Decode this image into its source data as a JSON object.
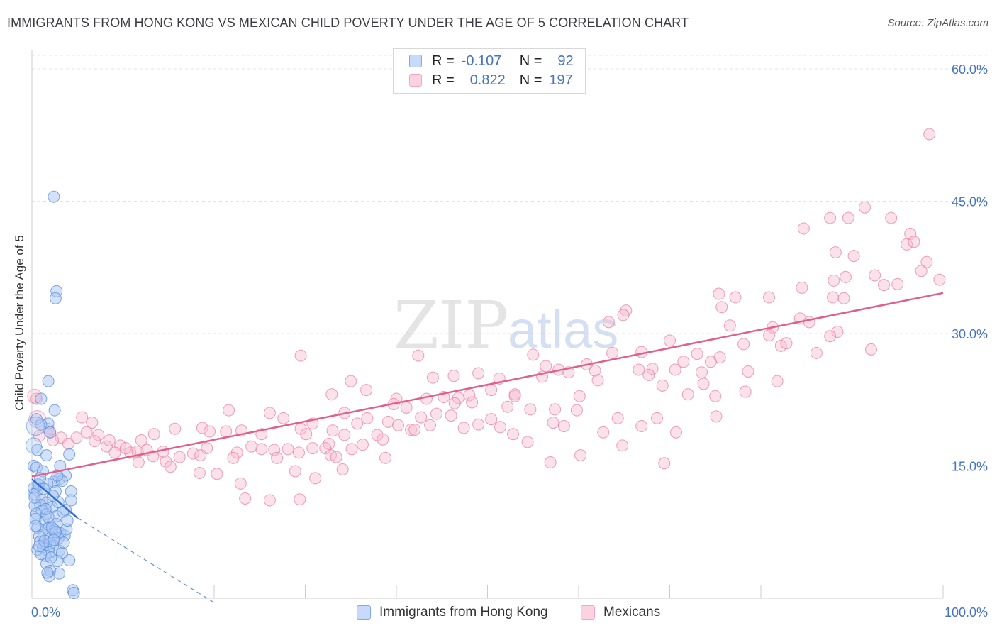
{
  "header": {
    "title": "IMMIGRANTS FROM HONG KONG VS MEXICAN CHILD POVERTY UNDER THE AGE OF 5 CORRELATION CHART",
    "source": "Source: ZipAtlas.com"
  },
  "watermark": {
    "zip": "ZIP",
    "atlas": "atlas"
  },
  "legend": {
    "rows": [
      {
        "r_label": "R =",
        "r_value": "-0.107",
        "n_label": "N =",
        "n_value": "92",
        "color": "#7baaf7"
      },
      {
        "r_label": "R =",
        "r_value": "0.822",
        "n_label": "N =",
        "n_value": "197",
        "color": "#f4a6c0"
      }
    ]
  },
  "colors": {
    "blue": "#5b8fdb",
    "blue_fill": "#a9c6f3",
    "pink": "#e8779b",
    "pink_fill": "#f7bccf",
    "axis_text": "#4472c4",
    "grid": "#e3e3e3"
  },
  "chart_data": {
    "type": "scatter",
    "title": "IMMIGRANTS FROM HONG KONG VS MEXICAN CHILD POVERTY UNDER THE AGE OF 5 CORRELATION CHART",
    "xlabel": "",
    "ylabel": "Child Poverty Under the Age of 5",
    "xlim": [
      0,
      100
    ],
    "ylim": [
      0,
      60
    ],
    "x_tick_labels": [
      "0.0%",
      "100.0%"
    ],
    "y_ticks": [
      15,
      30,
      45,
      60
    ],
    "y_tick_labels": [
      "15.0%",
      "30.0%",
      "45.0%",
      "60.0%"
    ],
    "grid": true,
    "legend_position": "bottom-center",
    "series": [
      {
        "name": "Immigrants from Hong Kong",
        "color": "#7baaf7",
        "trend": {
          "x0": 0,
          "y0": 13.5,
          "x1": 5.0,
          "y1": 9.1,
          "dash_to_x": 20,
          "dash_to_y": -0.5
        },
        "points": [
          [
            2.4,
            45.5
          ],
          [
            2.7,
            34.8
          ],
          [
            2.6,
            34.0
          ],
          [
            1.8,
            24.6
          ],
          [
            1.0,
            22.6
          ],
          [
            2.5,
            21.3
          ],
          [
            0.5,
            20.3
          ],
          [
            1.8,
            19.8
          ],
          [
            1.0,
            19.7
          ],
          [
            2.0,
            18.8
          ],
          [
            1.6,
            16.2
          ],
          [
            4.1,
            16.3
          ],
          [
            0.2,
            15.0
          ],
          [
            3.1,
            15.0
          ],
          [
            0.5,
            14.8
          ],
          [
            3.7,
            13.9
          ],
          [
            3.0,
            13.5
          ],
          [
            2.4,
            13.2
          ],
          [
            1.7,
            13.0
          ],
          [
            0.8,
            12.8
          ],
          [
            0.2,
            12.5
          ],
          [
            3.3,
            13.3
          ],
          [
            0.6,
            12.2
          ],
          [
            2.6,
            12.1
          ],
          [
            4.3,
            12.1
          ],
          [
            0.3,
            11.8
          ],
          [
            1.1,
            11.1
          ],
          [
            4.3,
            11.1
          ],
          [
            1.6,
            10.8
          ],
          [
            0.9,
            10.6
          ],
          [
            0.3,
            10.5
          ],
          [
            2.2,
            10.3
          ],
          [
            3.7,
            10.0
          ],
          [
            1.1,
            9.9
          ],
          [
            0.5,
            9.6
          ],
          [
            1.6,
            9.5
          ],
          [
            2.7,
            9.3
          ],
          [
            0.4,
            9.0
          ],
          [
            1.4,
            8.6
          ],
          [
            2.7,
            8.4
          ],
          [
            1.9,
            8.1
          ],
          [
            0.6,
            8.0
          ],
          [
            1.8,
            7.9
          ],
          [
            2.5,
            7.7
          ],
          [
            3.1,
            7.4
          ],
          [
            1.3,
            7.2
          ],
          [
            3.6,
            7.1
          ],
          [
            0.8,
            7.0
          ],
          [
            2.1,
            6.9
          ],
          [
            2.9,
            6.8
          ],
          [
            0.9,
            6.4
          ],
          [
            2.0,
            6.2
          ],
          [
            1.6,
            6.0
          ],
          [
            2.3,
            5.9
          ],
          [
            1.2,
            5.8
          ],
          [
            0.6,
            5.5
          ],
          [
            3.0,
            5.4
          ],
          [
            1.9,
            5.2
          ],
          [
            3.3,
            5.1
          ],
          [
            1.5,
            4.8
          ],
          [
            4.1,
            4.3
          ],
          [
            2.8,
            4.2
          ],
          [
            1.6,
            3.9
          ],
          [
            2.0,
            3.1
          ],
          [
            3.0,
            2.8
          ],
          [
            1.9,
            2.5
          ],
          [
            4.5,
            0.9
          ],
          [
            4.6,
            0.6
          ],
          [
            0.3,
            11.4
          ],
          [
            2.2,
            8.0
          ],
          [
            1.4,
            6.5
          ],
          [
            0.7,
            12.9
          ],
          [
            3.4,
            9.8
          ],
          [
            2.9,
            10.9
          ],
          [
            0.4,
            8.2
          ],
          [
            1.2,
            14.4
          ],
          [
            2.3,
            11.6
          ],
          [
            3.5,
            6.3
          ],
          [
            1.0,
            5.0
          ],
          [
            2.6,
            7.5
          ],
          [
            1.8,
            9.2
          ],
          [
            0.9,
            13.6
          ],
          [
            3.8,
            7.8
          ],
          [
            2.1,
            4.6
          ],
          [
            1.5,
            10.1
          ],
          [
            0.6,
            16.8
          ],
          [
            2.8,
            13.9
          ],
          [
            1.3,
            12.4
          ],
          [
            3.9,
            8.8
          ],
          [
            0.8,
            5.9
          ],
          [
            2.4,
            6.6
          ],
          [
            1.7,
            2.9
          ]
        ]
      },
      {
        "name": "Mexicans",
        "color": "#f4a6c0",
        "trend": {
          "x0": 0,
          "y0": 13.8,
          "x1": 100,
          "y1": 34.6
        },
        "points": [
          [
            98.5,
            52.6
          ],
          [
            91.4,
            44.3
          ],
          [
            89.6,
            43.1
          ],
          [
            87.6,
            43.1
          ],
          [
            94.3,
            43.1
          ],
          [
            84.7,
            41.9
          ],
          [
            96.4,
            41.3
          ],
          [
            96.0,
            40.1
          ],
          [
            96.8,
            40.4
          ],
          [
            90.2,
            38.8
          ],
          [
            88.2,
            39.2
          ],
          [
            98.2,
            38.1
          ],
          [
            97.6,
            37.1
          ],
          [
            92.5,
            36.6
          ],
          [
            99.6,
            36.1
          ],
          [
            88.0,
            36.0
          ],
          [
            89.3,
            36.4
          ],
          [
            93.5,
            35.5
          ],
          [
            95.0,
            35.6
          ],
          [
            84.5,
            35.2
          ],
          [
            75.4,
            34.5
          ],
          [
            80.9,
            34.1
          ],
          [
            89.1,
            34.0
          ],
          [
            87.9,
            34.1
          ],
          [
            75.7,
            33.0
          ],
          [
            77.2,
            34.1
          ],
          [
            65.2,
            32.6
          ],
          [
            64.9,
            32.1
          ],
          [
            84.3,
            31.7
          ],
          [
            63.3,
            31.3
          ],
          [
            76.6,
            30.9
          ],
          [
            85.3,
            31.3
          ],
          [
            81.3,
            30.7
          ],
          [
            88.4,
            30.2
          ],
          [
            87.6,
            29.7
          ],
          [
            80.9,
            29.8
          ],
          [
            70.0,
            29.2
          ],
          [
            78.1,
            28.8
          ],
          [
            82.2,
            28.6
          ],
          [
            82.8,
            28.9
          ],
          [
            63.7,
            27.8
          ],
          [
            66.9,
            27.9
          ],
          [
            92.1,
            28.2
          ],
          [
            86.1,
            27.8
          ],
          [
            73.0,
            27.7
          ],
          [
            75.5,
            27.3
          ],
          [
            55.0,
            27.6
          ],
          [
            29.5,
            27.5
          ],
          [
            42.4,
            27.5
          ],
          [
            60.9,
            26.5
          ],
          [
            71.5,
            26.8
          ],
          [
            74.5,
            26.8
          ],
          [
            56.4,
            26.3
          ],
          [
            57.8,
            25.9
          ],
          [
            61.8,
            25.8
          ],
          [
            68.1,
            26.0
          ],
          [
            70.6,
            25.9
          ],
          [
            66.6,
            25.9
          ],
          [
            67.7,
            25.3
          ],
          [
            58.9,
            25.6
          ],
          [
            73.5,
            25.6
          ],
          [
            49.0,
            25.5
          ],
          [
            46.3,
            25.2
          ],
          [
            44.0,
            25.0
          ],
          [
            51.3,
            24.9
          ],
          [
            56.0,
            25.1
          ],
          [
            62.1,
            24.7
          ],
          [
            81.8,
            24.6
          ],
          [
            35.0,
            24.6
          ],
          [
            73.7,
            24.3
          ],
          [
            36.7,
            23.6
          ],
          [
            50.4,
            23.6
          ],
          [
            72.0,
            23.1
          ],
          [
            48.0,
            23.0
          ],
          [
            53.0,
            22.9
          ],
          [
            53.0,
            23.1
          ],
          [
            45.2,
            22.8
          ],
          [
            78.3,
            23.4
          ],
          [
            46.8,
            22.7
          ],
          [
            60.1,
            22.9
          ],
          [
            32.9,
            23.1
          ],
          [
            40.0,
            22.6
          ],
          [
            43.3,
            22.6
          ],
          [
            39.7,
            22.0
          ],
          [
            46.4,
            22.1
          ],
          [
            41.1,
            21.6
          ],
          [
            52.2,
            21.7
          ],
          [
            57.4,
            21.4
          ],
          [
            59.8,
            21.3
          ],
          [
            54.7,
            21.4
          ],
          [
            21.6,
            21.3
          ],
          [
            26.1,
            21.0
          ],
          [
            34.3,
            21.0
          ],
          [
            36.8,
            20.4
          ],
          [
            46.0,
            20.7
          ],
          [
            57.2,
            19.9
          ],
          [
            42.7,
            20.5
          ],
          [
            50.4,
            20.3
          ],
          [
            64.3,
            20.4
          ],
          [
            68.6,
            20.4
          ],
          [
            75.1,
            20.6
          ],
          [
            39.1,
            20.0
          ],
          [
            40.2,
            19.6
          ],
          [
            49.0,
            19.7
          ],
          [
            51.4,
            19.4
          ],
          [
            30.8,
            19.8
          ],
          [
            35.7,
            19.8
          ],
          [
            27.6,
            20.4
          ],
          [
            5.5,
            20.5
          ],
          [
            6.6,
            19.9
          ],
          [
            1.8,
            19.2
          ],
          [
            13.4,
            18.6
          ],
          [
            15.7,
            19.2
          ],
          [
            18.7,
            19.3
          ],
          [
            19.5,
            18.9
          ],
          [
            21.3,
            18.9
          ],
          [
            23.0,
            19.0
          ],
          [
            25.2,
            18.6
          ],
          [
            29.5,
            19.2
          ],
          [
            30.1,
            18.6
          ],
          [
            33.0,
            19.0
          ],
          [
            37.9,
            18.5
          ],
          [
            41.6,
            19.1
          ],
          [
            43.7,
            19.6
          ],
          [
            47.4,
            19.3
          ],
          [
            2.0,
            18.8
          ],
          [
            3.2,
            18.2
          ],
          [
            4.9,
            18.2
          ],
          [
            7.3,
            18.5
          ],
          [
            0.8,
            18.4
          ],
          [
            6.9,
            17.8
          ],
          [
            8.2,
            17.2
          ],
          [
            9.7,
            17.3
          ],
          [
            12.6,
            16.8
          ],
          [
            14.4,
            16.6
          ],
          [
            19.2,
            17.0
          ],
          [
            25.2,
            16.9
          ],
          [
            28.1,
            16.9
          ],
          [
            30.8,
            17.0
          ],
          [
            32.6,
            17.5
          ],
          [
            34.3,
            18.5
          ],
          [
            36.3,
            17.4
          ],
          [
            32.2,
            17.0
          ],
          [
            38.5,
            18.0
          ],
          [
            9.1,
            16.5
          ],
          [
            10.8,
            16.5
          ],
          [
            11.6,
            16.6
          ],
          [
            13.3,
            16.1
          ],
          [
            17.7,
            16.4
          ],
          [
            18.5,
            16.2
          ],
          [
            22.5,
            16.5
          ],
          [
            24.1,
            17.2
          ],
          [
            29.3,
            16.5
          ],
          [
            32.8,
            16.2
          ],
          [
            35.1,
            16.9
          ],
          [
            26.6,
            16.8
          ],
          [
            16.2,
            16.0
          ],
          [
            14.7,
            15.5
          ],
          [
            11.7,
            15.4
          ],
          [
            15.2,
            14.9
          ],
          [
            18.4,
            14.2
          ],
          [
            20.3,
            14.1
          ],
          [
            22.1,
            15.9
          ],
          [
            26.9,
            15.9
          ],
          [
            33.4,
            16.0
          ],
          [
            38.8,
            15.9
          ],
          [
            28.9,
            14.4
          ],
          [
            34.1,
            14.6
          ],
          [
            22.9,
            13.0
          ],
          [
            23.4,
            11.3
          ],
          [
            26.1,
            11.1
          ],
          [
            29.4,
            11.2
          ],
          [
            31.1,
            13.6
          ],
          [
            0.5,
            22.6
          ],
          [
            2.3,
            17.9
          ],
          [
            4.0,
            17.5
          ],
          [
            6.0,
            18.8
          ],
          [
            8.5,
            17.9
          ],
          [
            10.3,
            17.0
          ],
          [
            12.0,
            17.9
          ],
          [
            48.3,
            22.2
          ],
          [
            44.4,
            20.9
          ],
          [
            42.0,
            19.1
          ],
          [
            52.8,
            18.6
          ],
          [
            54.4,
            17.7
          ],
          [
            58.4,
            19.5
          ],
          [
            62.7,
            18.8
          ],
          [
            66.9,
            19.5
          ],
          [
            64.8,
            17.3
          ],
          [
            70.7,
            18.8
          ],
          [
            56.9,
            15.4
          ],
          [
            60.2,
            16.2
          ],
          [
            69.4,
            15.3
          ],
          [
            75.0,
            22.9
          ],
          [
            78.6,
            25.7
          ],
          [
            69.2,
            24.1
          ]
        ]
      }
    ]
  },
  "bottom_legend": {
    "items": [
      {
        "label": "Immigrants from Hong Kong",
        "color": "#7baaf7"
      },
      {
        "label": "Mexicans",
        "color": "#f4a6c0"
      }
    ]
  }
}
